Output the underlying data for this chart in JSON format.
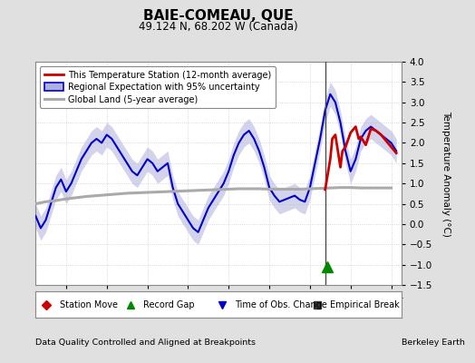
{
  "title": "BAIE-COMEAU, QUE",
  "subtitle": "49.124 N, 68.202 W (Canada)",
  "ylabel": "Temperature Anomaly (°C)",
  "footer_left": "Data Quality Controlled and Aligned at Breakpoints",
  "footer_right": "Berkeley Earth",
  "ylim": [
    -1.5,
    4.0
  ],
  "yticks": [
    -1.5,
    -1.0,
    -0.5,
    0.0,
    0.5,
    1.0,
    1.5,
    2.0,
    2.5,
    3.0,
    3.5,
    4.0
  ],
  "xlim": [
    1996.5,
    2014.5
  ],
  "xticks": [
    1998,
    2000,
    2002,
    2004,
    2006,
    2008,
    2010,
    2012,
    2014
  ],
  "bg_color": "#e0e0e0",
  "plot_bg_color": "#ffffff",
  "grid_color": "#cccccc",
  "blue_line_color": "#0000cc",
  "blue_fill_color": "#b0b0dd",
  "red_line_color": "#cc0000",
  "gray_line_color": "#aaaaaa",
  "vertical_line_x": 2010.75,
  "record_gap_x": 2010.85,
  "record_gap_y": -1.05,
  "regional_x": [
    1996.5,
    1996.75,
    1997.0,
    1997.25,
    1997.5,
    1997.75,
    1998.0,
    1998.25,
    1998.5,
    1998.75,
    1999.0,
    1999.25,
    1999.5,
    1999.75,
    2000.0,
    2000.25,
    2000.5,
    2000.75,
    2001.0,
    2001.25,
    2001.5,
    2001.75,
    2002.0,
    2002.25,
    2002.5,
    2002.75,
    2003.0,
    2003.25,
    2003.5,
    2003.75,
    2004.0,
    2004.25,
    2004.5,
    2004.75,
    2005.0,
    2005.25,
    2005.5,
    2005.75,
    2006.0,
    2006.25,
    2006.5,
    2006.75,
    2007.0,
    2007.25,
    2007.5,
    2007.75,
    2008.0,
    2008.25,
    2008.5,
    2008.75,
    2009.0,
    2009.25,
    2009.5,
    2009.75,
    2010.0,
    2010.25,
    2010.5,
    2010.75,
    2011.0,
    2011.25,
    2011.5,
    2011.75,
    2012.0,
    2012.25,
    2012.5,
    2012.75,
    2013.0,
    2013.25,
    2013.5,
    2013.75,
    2014.0,
    2014.25
  ],
  "regional_y": [
    0.2,
    -0.1,
    0.1,
    0.5,
    0.9,
    1.1,
    0.8,
    1.0,
    1.3,
    1.6,
    1.8,
    2.0,
    2.1,
    2.0,
    2.2,
    2.1,
    1.9,
    1.7,
    1.5,
    1.3,
    1.2,
    1.4,
    1.6,
    1.5,
    1.3,
    1.4,
    1.5,
    0.9,
    0.5,
    0.3,
    0.1,
    -0.1,
    -0.2,
    0.1,
    0.4,
    0.6,
    0.8,
    1.0,
    1.3,
    1.7,
    2.0,
    2.2,
    2.3,
    2.1,
    1.8,
    1.4,
    0.9,
    0.7,
    0.55,
    0.6,
    0.65,
    0.7,
    0.6,
    0.55,
    0.9,
    1.5,
    2.1,
    2.8,
    3.2,
    3.0,
    2.5,
    1.8,
    1.3,
    1.6,
    2.1,
    2.3,
    2.4,
    2.3,
    2.2,
    2.1,
    2.0,
    1.8
  ],
  "regional_upper": [
    0.5,
    0.2,
    0.4,
    0.8,
    1.2,
    1.4,
    1.1,
    1.3,
    1.6,
    1.9,
    2.1,
    2.3,
    2.4,
    2.3,
    2.5,
    2.4,
    2.2,
    2.0,
    1.8,
    1.6,
    1.5,
    1.7,
    1.9,
    1.8,
    1.6,
    1.7,
    1.8,
    1.2,
    0.8,
    0.6,
    0.4,
    0.2,
    0.1,
    0.4,
    0.7,
    0.9,
    1.1,
    1.3,
    1.6,
    2.0,
    2.3,
    2.5,
    2.6,
    2.4,
    2.1,
    1.7,
    1.2,
    1.0,
    0.85,
    0.9,
    0.95,
    1.0,
    0.9,
    0.85,
    1.2,
    1.8,
    2.4,
    3.1,
    3.5,
    3.3,
    2.8,
    2.1,
    1.6,
    1.9,
    2.4,
    2.6,
    2.7,
    2.6,
    2.5,
    2.4,
    2.3,
    2.1
  ],
  "regional_lower": [
    -0.1,
    -0.4,
    -0.2,
    0.2,
    0.6,
    0.8,
    0.5,
    0.7,
    1.0,
    1.3,
    1.5,
    1.7,
    1.8,
    1.7,
    1.9,
    1.8,
    1.6,
    1.4,
    1.2,
    1.0,
    0.9,
    1.1,
    1.3,
    1.2,
    1.0,
    1.1,
    1.2,
    0.6,
    0.2,
    0.0,
    -0.2,
    -0.4,
    -0.5,
    -0.2,
    0.1,
    0.3,
    0.5,
    0.7,
    1.0,
    1.4,
    1.7,
    1.9,
    2.0,
    1.8,
    1.5,
    1.1,
    0.6,
    0.4,
    0.25,
    0.3,
    0.35,
    0.4,
    0.3,
    0.25,
    0.6,
    1.2,
    1.8,
    2.5,
    2.9,
    2.7,
    2.2,
    1.5,
    1.0,
    1.3,
    1.8,
    2.0,
    2.1,
    2.0,
    1.9,
    1.8,
    1.7,
    1.5
  ],
  "station_x": [
    2010.75,
    2011.0,
    2011.1,
    2011.25,
    2011.5,
    2011.6,
    2011.75,
    2012.0,
    2012.25,
    2012.4,
    2012.5,
    2012.75,
    2013.0,
    2013.25,
    2013.5,
    2013.75,
    2014.0,
    2014.25
  ],
  "station_y": [
    0.85,
    1.6,
    2.1,
    2.2,
    1.4,
    1.8,
    1.9,
    2.25,
    2.4,
    2.1,
    2.15,
    1.95,
    2.35,
    2.3,
    2.2,
    2.05,
    1.9,
    1.75
  ],
  "global_x": [
    1996.5,
    1997.0,
    1997.5,
    1998.0,
    1998.5,
    1999.0,
    1999.5,
    2000.0,
    2000.5,
    2001.0,
    2001.5,
    2002.0,
    2002.5,
    2003.0,
    2003.5,
    2004.0,
    2004.5,
    2005.0,
    2005.5,
    2006.0,
    2006.5,
    2007.0,
    2007.5,
    2008.0,
    2008.5,
    2009.0,
    2009.5,
    2010.0,
    2010.5,
    2011.0,
    2011.5,
    2012.0,
    2012.5,
    2013.0,
    2013.5,
    2014.0
  ],
  "global_y": [
    0.5,
    0.55,
    0.58,
    0.62,
    0.65,
    0.68,
    0.7,
    0.72,
    0.74,
    0.76,
    0.77,
    0.78,
    0.79,
    0.8,
    0.81,
    0.82,
    0.83,
    0.84,
    0.85,
    0.86,
    0.87,
    0.87,
    0.87,
    0.86,
    0.86,
    0.86,
    0.86,
    0.87,
    0.88,
    0.89,
    0.9,
    0.9,
    0.89,
    0.89,
    0.89,
    0.89
  ]
}
